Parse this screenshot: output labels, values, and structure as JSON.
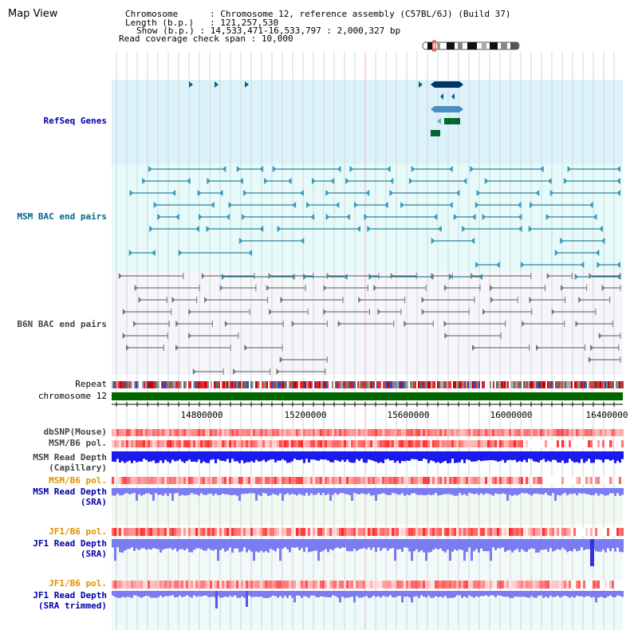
{
  "title": "Map View",
  "info": {
    "chromosome_key": "Chromosome",
    "chromosome_value": "Chromosome 12, reference assembly (C57BL/6J) (Build 37)",
    "length_key": "Length (b.p.)",
    "length_value": "121,257,530",
    "show_key": "Show (b.p.)",
    "show_value": "14,533,471-16,533,797 : 2,000,327 bp",
    "coverage_key": "Read coverage check span",
    "coverage_value": "10,000"
  },
  "tracks": {
    "refseq": "RefSeq Genes",
    "msm_bac": "MSM BAC end pairs",
    "b6n_bac": "B6N BAC end pairs",
    "repeat": "Repeat",
    "chromosome": "chromosome 12",
    "dbsnp": "dbSNP(Mouse)",
    "msm_b6_pol_1": "MSM/B6 pol.",
    "msm_read_depth_cap_1": "MSM Read Depth",
    "msm_read_depth_cap_2": "(Capillary)",
    "msm_b6_pol_2": "MSM/B6 pol.",
    "msm_read_depth_sra_1": "MSM Read Depth",
    "msm_read_depth_sra_2": "(SRA)",
    "jf1_b6_pol_1": "JF1/B6 pol.",
    "jf1_read_depth_sra_1": "JF1 Read Depth",
    "jf1_read_depth_sra_2": "(SRA)",
    "jf1_b6_pol_2": "JF1/B6 pol.",
    "jf1_read_depth_trim_1": "JF1 Read Depth",
    "jf1_read_depth_trim_2": "(SRA trimmed)"
  },
  "axis": {
    "ticks": [
      "14800000",
      "15200000",
      "15600000",
      "16000000",
      "16400000"
    ]
  },
  "colors": {
    "refseq_bg": "#dcf2fa",
    "msm_bg": "#e6fafa",
    "b6n_bg": "#f4f6fa",
    "chromosome_bar": "#006600",
    "msm_feature": "#006688",
    "b6n_feature": "#555555",
    "depth_blue": "#1a1aee",
    "depth_lavender": "#7b7bf2"
  }
}
